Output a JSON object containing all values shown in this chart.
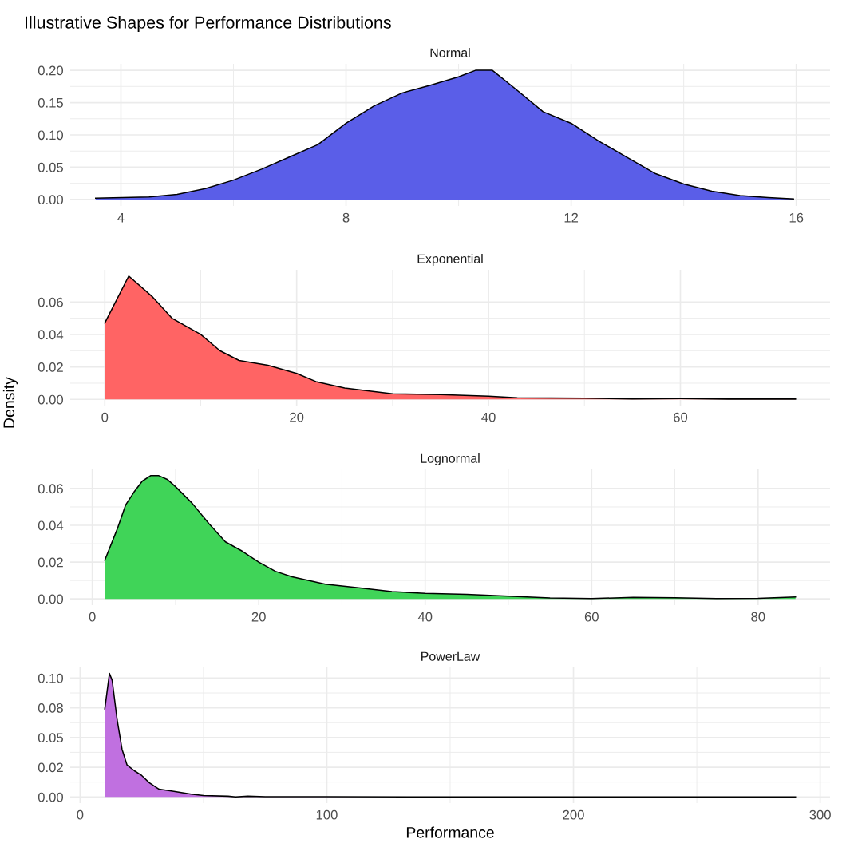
{
  "chart_data": [
    {
      "type": "area",
      "title": "Illustrative Shapes for Performance Distributions",
      "subtitle": "Normal",
      "grid": true,
      "tick_labels": true,
      "x": [
        3.55,
        4.5,
        5,
        5.5,
        6,
        6.5,
        7,
        7.5,
        8,
        8.5,
        9,
        9.5,
        10,
        10.3,
        10.6,
        11,
        11.5,
        12,
        12.5,
        13,
        13.5,
        14,
        14.5,
        15,
        15.5,
        15.95
      ],
      "series": [
        {
          "color": "#5a5ee8",
          "values": [
            0.002,
            0.004,
            0.008,
            0.017,
            0.03,
            0.047,
            0.066,
            0.085,
            0.118,
            0.145,
            0.165,
            0.177,
            0.19,
            0.2,
            0.2,
            0.172,
            0.136,
            0.118,
            0.09,
            0.065,
            0.04,
            0.024,
            0.013,
            0.006,
            0.003,
            0.001
          ]
        }
      ],
      "xlim": [
        3.1,
        16.6
      ],
      "xticks": [
        4,
        8,
        12,
        16
      ],
      "ylim": [
        -0.01,
        0.21
      ],
      "yticks": [
        {
          "value": 0,
          "label": "0.00"
        },
        {
          "value": 0.05,
          "label": "0.05"
        },
        {
          "value": 0.1,
          "label": "0.10"
        },
        {
          "value": 0.15,
          "label": "0.15"
        },
        {
          "value": 0.2,
          "label": "0.20"
        }
      ]
    },
    {
      "type": "area",
      "subtitle": "Exponential",
      "ylabel": "Density",
      "grid": true,
      "x": [
        0,
        2.5,
        5,
        7,
        10,
        12,
        14,
        17,
        20,
        22,
        25,
        30,
        35,
        40,
        43,
        50,
        55,
        60,
        65,
        72
      ],
      "series": [
        {
          "color": "#ff6464",
          "values": [
            0.047,
            0.076,
            0.063,
            0.05,
            0.04,
            0.03,
            0.024,
            0.021,
            0.016,
            0.011,
            0.007,
            0.0034,
            0.003,
            0.002,
            0.001,
            0.0007,
            0.0003,
            0.0005,
            0.0002,
            0.0002
          ]
        }
      ],
      "xlim": [
        -3.6,
        75.6
      ],
      "xticks": [
        0,
        20,
        40,
        60
      ],
      "ylim": [
        -0.0038,
        0.0798
      ],
      "yticks": [
        {
          "value": 0,
          "label": "0.00"
        },
        {
          "value": 0.02,
          "label": "0.02"
        },
        {
          "value": 0.04,
          "label": "0.04"
        },
        {
          "value": 0.06,
          "label": "0.06"
        }
      ]
    },
    {
      "type": "area",
      "subtitle": "Lognormal",
      "grid": true,
      "x": [
        1.5,
        3,
        4,
        5,
        6,
        7,
        8,
        9,
        10,
        12,
        14,
        16,
        18,
        20,
        22,
        24,
        28,
        32,
        36,
        40,
        45,
        50,
        55,
        60,
        65,
        70,
        75,
        80,
        84.5
      ],
      "series": [
        {
          "color": "#40d458",
          "values": [
            0.021,
            0.038,
            0.051,
            0.058,
            0.064,
            0.067,
            0.067,
            0.065,
            0.061,
            0.052,
            0.041,
            0.031,
            0.026,
            0.02,
            0.015,
            0.012,
            0.008,
            0.006,
            0.004,
            0.003,
            0.0025,
            0.0015,
            0.0005,
            0.0002,
            0.0008,
            0.0006,
            0.0002,
            0.0003,
            0.001
          ]
        }
      ],
      "xlim": [
        -2.65,
        88.65
      ],
      "xticks": [
        0,
        20,
        40,
        60,
        80
      ],
      "ylim": [
        -0.0034,
        0.0704
      ],
      "yticks": [
        {
          "value": 0,
          "label": "0.00"
        },
        {
          "value": 0.02,
          "label": "0.02"
        },
        {
          "value": 0.04,
          "label": "0.04"
        },
        {
          "value": 0.06,
          "label": "0.06"
        }
      ]
    },
    {
      "type": "area",
      "subtitle": "PowerLaw",
      "xlabel": "Performance",
      "grid": true,
      "x": [
        10,
        11.9,
        13,
        15,
        17,
        19,
        22,
        25,
        28,
        32,
        38,
        45,
        50,
        60,
        63,
        68,
        75,
        100,
        150,
        200,
        290
      ],
      "series": [
        {
          "color": "#c070e0",
          "values": [
            0.074,
            0.104,
            0.098,
            0.065,
            0.04,
            0.027,
            0.022,
            0.018,
            0.012,
            0.0065,
            0.0047,
            0.0023,
            0.0012,
            0.0006,
            0.0,
            0.0006,
            0.0002,
            0.0001,
            0.0,
            0.0,
            0.0
          ]
        }
      ],
      "xlim": [
        -4,
        304
      ],
      "xticks": [
        0,
        100,
        200,
        300
      ],
      "ylim": [
        -0.0052,
        0.109
      ],
      "yticks": [
        {
          "value": 0,
          "label": "0.00"
        },
        {
          "value": 0.025,
          "label": "0.02"
        },
        {
          "value": 0.05,
          "label": "0.05"
        },
        {
          "value": 0.075,
          "label": "0.08"
        },
        {
          "value": 0.1,
          "label": "0.10"
        }
      ]
    }
  ]
}
